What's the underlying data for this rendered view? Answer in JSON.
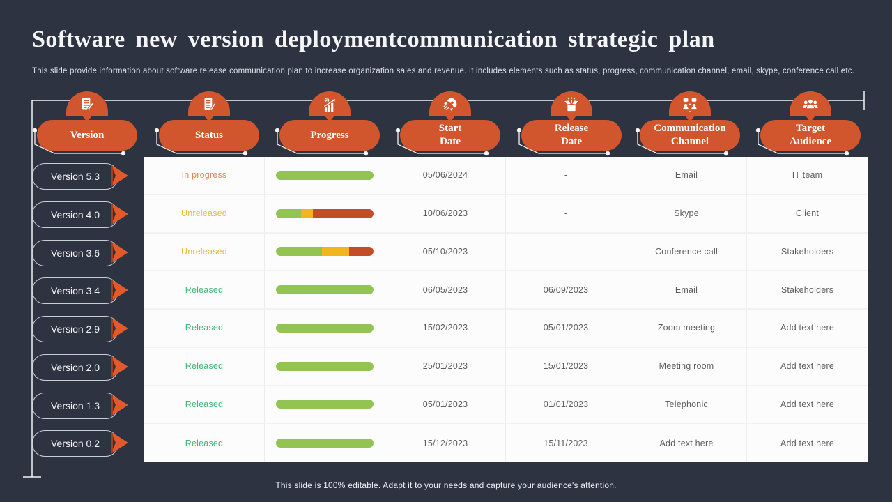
{
  "slide": {
    "title": "Software new version deploymentcommunication strategic plan",
    "subtitle": "This slide provide information about software release communication plan to increase organization sales and revenue. It includes elements such as status, progress, communication channel, email, skype, conference call etc.",
    "footer": "This slide is 100% editable. Adapt it to your needs and capture your audience's attention."
  },
  "colors": {
    "background": "#2e3341",
    "accent_orange": "#d2562d",
    "arrow_orange": "#e05a2b",
    "line_white": "#f2f4f6",
    "status_in_progress": "#df8757",
    "status_unreleased": "#e5bc3a",
    "status_released": "#44b375",
    "bar_green": "#92c353",
    "bar_yellow": "#f2b520",
    "bar_red": "#c44d28",
    "cell_text": "#5d5d5d"
  },
  "columns": [
    {
      "id": "version",
      "label": "Version",
      "wrap": false,
      "icon": "document-edit-icon"
    },
    {
      "id": "status",
      "label": "Status",
      "wrap": false,
      "icon": "checklist-icon"
    },
    {
      "id": "progress",
      "label": "Progress",
      "wrap": false,
      "icon": "growth-chart-icon"
    },
    {
      "id": "start-date",
      "label": "Start Date",
      "wrap": true,
      "icon": "rocket-icon"
    },
    {
      "id": "release-date",
      "label": "Release Date",
      "wrap": true,
      "icon": "open-box-icon"
    },
    {
      "id": "communication-channel",
      "label": "Communication Channel",
      "wrap": true,
      "icon": "people-chat-icon"
    },
    {
      "id": "target-audience",
      "label": "Target Audience",
      "wrap": true,
      "icon": "audience-icon"
    }
  ],
  "rows": [
    {
      "version": "Version 5.3",
      "status": "In progress",
      "status_type": "in_progress",
      "progress": [
        {
          "color": "green",
          "pct": 100
        }
      ],
      "start_date": "05/06/2024",
      "release_date": "-",
      "channel": "Email",
      "audience": "IT team"
    },
    {
      "version": "Version 4.0",
      "status": "Unreleased",
      "status_type": "unreleased",
      "progress": [
        {
          "color": "green",
          "pct": 26
        },
        {
          "color": "yellow",
          "pct": 12
        },
        {
          "color": "red",
          "pct": 62
        }
      ],
      "start_date": "10/06/2023",
      "release_date": "-",
      "channel": "Skype",
      "audience": "Client"
    },
    {
      "version": "Version 3.6",
      "status": "Unreleased",
      "status_type": "unreleased",
      "progress": [
        {
          "color": "green",
          "pct": 47
        },
        {
          "color": "yellow",
          "pct": 28
        },
        {
          "color": "red",
          "pct": 25
        }
      ],
      "start_date": "05/10/2023",
      "release_date": "-",
      "channel": "Conference call",
      "audience": "Stakeholders"
    },
    {
      "version": "Version 3.4",
      "status": "Released",
      "status_type": "released",
      "progress": [
        {
          "color": "green",
          "pct": 100
        }
      ],
      "start_date": "06/05/2023",
      "release_date": "06/09/2023",
      "channel": "Email",
      "audience": "Stakeholders"
    },
    {
      "version": "Version 2.9",
      "status": "Released",
      "status_type": "released",
      "progress": [
        {
          "color": "green",
          "pct": 100
        }
      ],
      "start_date": "15/02/2023",
      "release_date": "05/01/2023",
      "channel": "Zoom meeting",
      "audience": "Add text here"
    },
    {
      "version": "Version 2.0",
      "status": "Released",
      "status_type": "released",
      "progress": [
        {
          "color": "green",
          "pct": 100
        }
      ],
      "start_date": "25/01/2023",
      "release_date": "15/01/2023",
      "channel": "Meeting room",
      "audience": "Add text here"
    },
    {
      "version": "Version 1.3",
      "status": "Released",
      "status_type": "released",
      "progress": [
        {
          "color": "green",
          "pct": 100
        }
      ],
      "start_date": "05/01/2023",
      "release_date": "01/01/2023",
      "channel": "Telephonic",
      "audience": "Add text here"
    },
    {
      "version": "Version 0.2",
      "status": "Released",
      "status_type": "released",
      "progress": [
        {
          "color": "green",
          "pct": 100
        }
      ],
      "start_date": "15/12/2023",
      "release_date": "15/11/2023",
      "channel": "Add text here",
      "audience": "Add text here"
    }
  ]
}
